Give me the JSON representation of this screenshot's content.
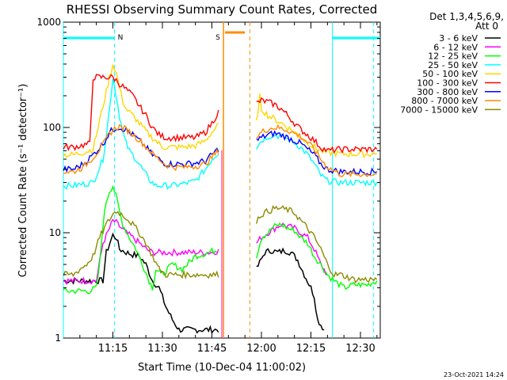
{
  "chart_data": {
    "type": "line",
    "title": "RHESSI Observing Summary Count Rates, Corrected",
    "ylabel": "Corrected Count Rate (s⁻¹ detector⁻¹)",
    "xlabel": "Start Time (10-Dec-04 11:00:02)",
    "yscale": "log",
    "ylim": [
      1,
      1000
    ],
    "xlim_minutes": [
      0,
      96
    ],
    "x_ticks": [
      {
        "label": "11:15",
        "minute": 15
      },
      {
        "label": "11:30",
        "minute": 30
      },
      {
        "label": "11:45",
        "minute": 45
      },
      {
        "label": "12:00",
        "minute": 60
      },
      {
        "label": "12:15",
        "minute": 75
      },
      {
        "label": "12:30",
        "minute": 90
      }
    ],
    "y_ticks": [
      {
        "label": "1",
        "value": 1
      },
      {
        "label": "10",
        "value": 10
      },
      {
        "label": "100",
        "value": 100
      },
      {
        "label": "1000",
        "value": 1000
      }
    ],
    "legend_header": [
      "Det 1,3,4,5,6,9,",
      "Att 0"
    ],
    "legend_position": "right",
    "series": [
      {
        "name": "3 - 6 keV",
        "color": "#000000",
        "x": [
          0,
          3,
          5,
          8,
          10,
          12,
          13,
          15,
          16,
          17,
          19,
          21,
          23,
          25,
          27,
          29,
          31,
          33,
          35,
          37,
          39,
          41,
          43,
          45,
          47.5,
          58.5,
          61,
          63,
          65,
          67,
          69,
          71,
          73,
          75,
          76,
          77,
          79
        ],
        "y": [
          3.5,
          3.5,
          3.5,
          3.5,
          3.5,
          3.5,
          6.5,
          9.5,
          9,
          7,
          6.5,
          6.2,
          6,
          5,
          3.5,
          3,
          2,
          1.5,
          1.2,
          1.2,
          1.2,
          1.2,
          1.2,
          1.2,
          1.2,
          4.5,
          6.5,
          6.8,
          6.5,
          6.8,
          6.5,
          5.5,
          4,
          3,
          2.5,
          1.5,
          1.2
        ]
      },
      {
        "name": "6 - 12 keV",
        "color": "#ff00ff",
        "x": [
          0,
          8,
          10,
          12,
          14,
          15,
          16,
          17,
          19,
          21,
          23,
          25,
          27,
          29,
          31,
          33,
          35,
          37,
          39,
          41,
          43,
          45,
          47.5,
          58.5,
          60,
          62,
          64,
          66,
          68,
          70,
          72,
          74,
          76,
          78,
          80
        ],
        "y": [
          3.5,
          3.5,
          3.5,
          8,
          11,
          13,
          12.5,
          11.5,
          10,
          9,
          8,
          7,
          6.5,
          6.5,
          6.5,
          6.5,
          6.5,
          6.5,
          6.5,
          6.5,
          6.5,
          6.5,
          6.8,
          8,
          9,
          10,
          11,
          12,
          11.5,
          11,
          10,
          9,
          7,
          5,
          4
        ]
      },
      {
        "name": "12 - 25 keV",
        "color": "#00ff00",
        "x": [
          0,
          3,
          5,
          8,
          10,
          11,
          12,
          13,
          14,
          15,
          16,
          17,
          18,
          20,
          22,
          24,
          26,
          27,
          28,
          30,
          33,
          36,
          40,
          44,
          47,
          58.5,
          60,
          62,
          64,
          66,
          68,
          70,
          72,
          74,
          76,
          78,
          80,
          82,
          85,
          88,
          92,
          95
        ],
        "y": [
          2.8,
          2.8,
          2.8,
          2.8,
          3,
          5,
          12,
          20,
          25,
          28,
          22,
          16,
          12,
          9,
          7,
          5,
          3.5,
          3,
          4.5,
          4,
          5,
          4.5,
          6,
          6.5,
          7,
          6,
          9,
          10,
          11.5,
          12,
          11,
          10.5,
          9,
          8,
          6,
          5,
          4,
          3.5,
          3,
          3.2,
          3.2,
          3.5
        ]
      },
      {
        "name": "25 - 50 keV",
        "color": "#00ffff",
        "x": [
          0,
          3,
          6,
          9,
          12,
          14,
          15,
          16,
          17,
          18,
          19,
          20,
          22,
          24,
          26,
          28,
          30,
          33,
          36,
          40,
          43,
          45,
          47.5,
          58.5,
          60,
          62,
          64,
          66,
          68,
          70,
          72,
          74,
          76,
          78,
          80,
          84,
          88,
          92,
          95
        ],
        "y": [
          28,
          28,
          29,
          30,
          50,
          150,
          300,
          200,
          130,
          90,
          70,
          60,
          50,
          40,
          32,
          28,
          28,
          28,
          29,
          31,
          40,
          50,
          60,
          65,
          75,
          82,
          85,
          82,
          78,
          72,
          64,
          55,
          45,
          35,
          31,
          30,
          30,
          30,
          30
        ]
      },
      {
        "name": "50 - 100 keV",
        "color": "#ffd700",
        "x": [
          0,
          3,
          6,
          9,
          12,
          14,
          15,
          16,
          17,
          18,
          19,
          20,
          22,
          24,
          26,
          28,
          30,
          33,
          36,
          40,
          43,
          45,
          47.5,
          58.5,
          59.5,
          60,
          62,
          64,
          66,
          68,
          70,
          72,
          74,
          76,
          78,
          80,
          84,
          88,
          92,
          95
        ],
        "y": [
          55,
          55,
          58,
          62,
          160,
          300,
          400,
          330,
          240,
          180,
          150,
          140,
          120,
          100,
          85,
          75,
          65,
          65,
          65,
          67,
          75,
          90,
          110,
          110,
          200,
          150,
          130,
          120,
          110,
          100,
          90,
          80,
          72,
          65,
          60,
          58,
          56,
          56,
          56,
          56
        ]
      },
      {
        "name": "100 - 300 keV",
        "color": "#ff0000",
        "x": [
          0,
          3,
          6,
          8,
          9,
          11,
          13,
          15,
          16,
          17,
          19,
          21,
          23,
          25,
          27,
          29,
          31,
          33,
          36,
          40,
          43,
          45,
          47.5,
          58.5,
          60,
          62,
          64,
          66,
          68,
          70,
          72,
          74,
          76,
          78,
          80,
          84,
          88,
          92,
          95
        ],
        "y": [
          65,
          65,
          68,
          70,
          300,
          300,
          300,
          300,
          280,
          260,
          230,
          200,
          160,
          130,
          100,
          85,
          80,
          80,
          80,
          80,
          90,
          110,
          150,
          170,
          180,
          175,
          165,
          150,
          130,
          110,
          95,
          85,
          75,
          65,
          60,
          62,
          62,
          62,
          62
        ]
      },
      {
        "name": "300 - 800 keV",
        "color": "#0000ff",
        "x": [
          0,
          3,
          6,
          9,
          12,
          14,
          16,
          17,
          19,
          21,
          23,
          25,
          27,
          29,
          31,
          34,
          37,
          40,
          43,
          45,
          47.5,
          58.5,
          60,
          62,
          64,
          66,
          68,
          70,
          72,
          74,
          76,
          78,
          80,
          84,
          88,
          92,
          95
        ],
        "y": [
          40,
          40,
          45,
          55,
          70,
          90,
          100,
          100,
          95,
          85,
          75,
          65,
          55,
          50,
          45,
          45,
          45,
          46,
          48,
          55,
          65,
          75,
          80,
          85,
          88,
          85,
          80,
          75,
          70,
          62,
          55,
          45,
          40,
          38,
          38,
          38,
          38
        ]
      },
      {
        "name": "800 - 7000 keV",
        "color": "#ff8c00",
        "x": [
          0,
          3,
          6,
          9,
          12,
          14,
          16,
          17,
          19,
          21,
          23,
          25,
          27,
          29,
          31,
          34,
          37,
          40,
          43,
          45,
          47.5,
          58.5,
          60,
          62,
          64,
          66,
          68,
          70,
          72,
          74,
          76,
          78,
          80,
          84,
          88,
          92,
          95
        ],
        "y": [
          38,
          38,
          42,
          52,
          68,
          88,
          100,
          102,
          96,
          86,
          76,
          66,
          56,
          50,
          44,
          42,
          42,
          43,
          45,
          52,
          62,
          80,
          90,
          97,
          100,
          98,
          94,
          88,
          82,
          72,
          62,
          50,
          42,
          36,
          36,
          36,
          36
        ]
      },
      {
        "name": "7000 - 15000 keV",
        "color": "#8b8b00",
        "x": [
          0,
          3,
          5,
          7,
          9,
          11,
          13,
          15,
          16,
          17,
          19,
          21,
          23,
          25,
          27,
          29,
          31,
          33,
          36,
          40,
          44,
          47.5,
          58.5,
          60,
          62,
          64,
          66,
          68,
          70,
          72,
          74,
          76,
          78,
          80,
          82,
          84,
          88,
          92,
          95
        ],
        "y": [
          4,
          4,
          4.5,
          5,
          6,
          9,
          12,
          15,
          16,
          15.5,
          14,
          12,
          10,
          8,
          6,
          4.5,
          4,
          4,
          4,
          4,
          4,
          4,
          13,
          15,
          16,
          17,
          17,
          16.5,
          15.5,
          13,
          11,
          9,
          7,
          5,
          4,
          4,
          3.6,
          3.6,
          3.6
        ]
      }
    ],
    "annotations": [
      {
        "label": "N",
        "color": "#00ffff",
        "x_minute": 15.5
      },
      {
        "label": "S",
        "color": "#ff8c00",
        "x_minute": 48.5
      }
    ],
    "markers": {
      "cyan_bars": [
        [
          0,
          15.5
        ],
        [
          81.5,
          96
        ]
      ],
      "cyan_lines": [
        0,
        81.5
      ],
      "cyan_dashed": [
        15.5,
        94
      ],
      "orange_bar": [
        49,
        55
      ],
      "orange_lines": [
        48.5
      ],
      "orange_dashed": [
        56.5
      ],
      "magenta_line": 48
    }
  },
  "footer": {
    "date": "23-Oct-2021 14:24"
  }
}
